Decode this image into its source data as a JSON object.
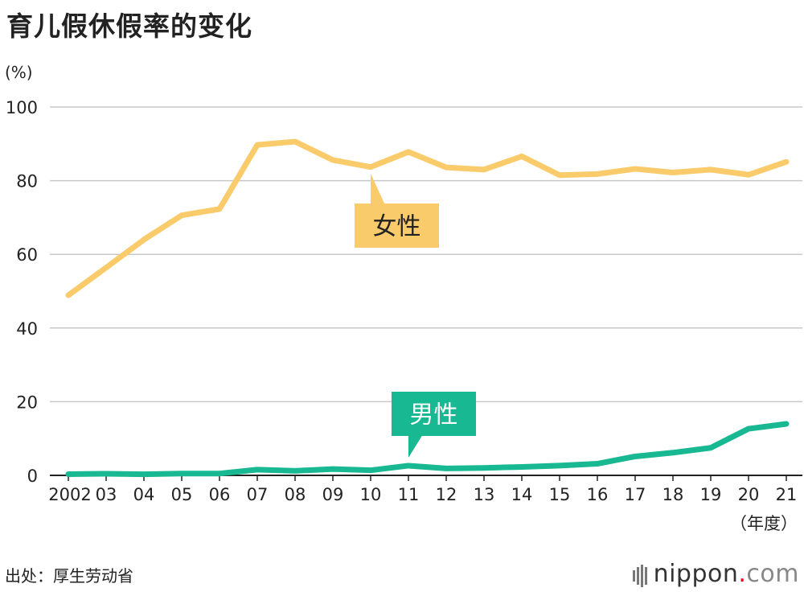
{
  "title": "育儿假休假率的变化",
  "unit_label": "(%)",
  "source": "出处：厚生劳动省",
  "brand": {
    "name": "nippon",
    "dot": ".",
    "tld": "com"
  },
  "colors": {
    "female": "#FACB6B",
    "male": "#18B892",
    "grid": "#c8c8c8",
    "axis": "#222222"
  },
  "chart_data": {
    "type": "line",
    "title": "育儿假休假率的变化",
    "ylabel": "(%)",
    "xlabel": "（年度）",
    "ylim": [
      0,
      100
    ],
    "yticks": [
      0,
      20,
      40,
      60,
      80,
      100
    ],
    "categories": [
      "2002",
      "03",
      "04",
      "05",
      "06",
      "07",
      "08",
      "09",
      "10",
      "11",
      "12",
      "13",
      "14",
      "15",
      "16",
      "17",
      "18",
      "19",
      "20",
      "21"
    ],
    "grid": true,
    "series": [
      {
        "name": "女性",
        "color": "#FACB6B",
        "values": [
          48.9,
          56.4,
          64.0,
          70.6,
          72.3,
          89.7,
          90.6,
          85.6,
          83.7,
          87.8,
          83.6,
          83.0,
          86.6,
          81.5,
          81.8,
          83.2,
          82.2,
          83.0,
          81.6,
          85.1
        ]
      },
      {
        "name": "男性",
        "color": "#18B892",
        "values": [
          0.33,
          0.44,
          0.3,
          0.5,
          0.5,
          1.56,
          1.23,
          1.72,
          1.38,
          2.63,
          1.89,
          2.03,
          2.3,
          2.65,
          3.16,
          5.14,
          6.16,
          7.48,
          12.65,
          13.97
        ]
      }
    ]
  }
}
